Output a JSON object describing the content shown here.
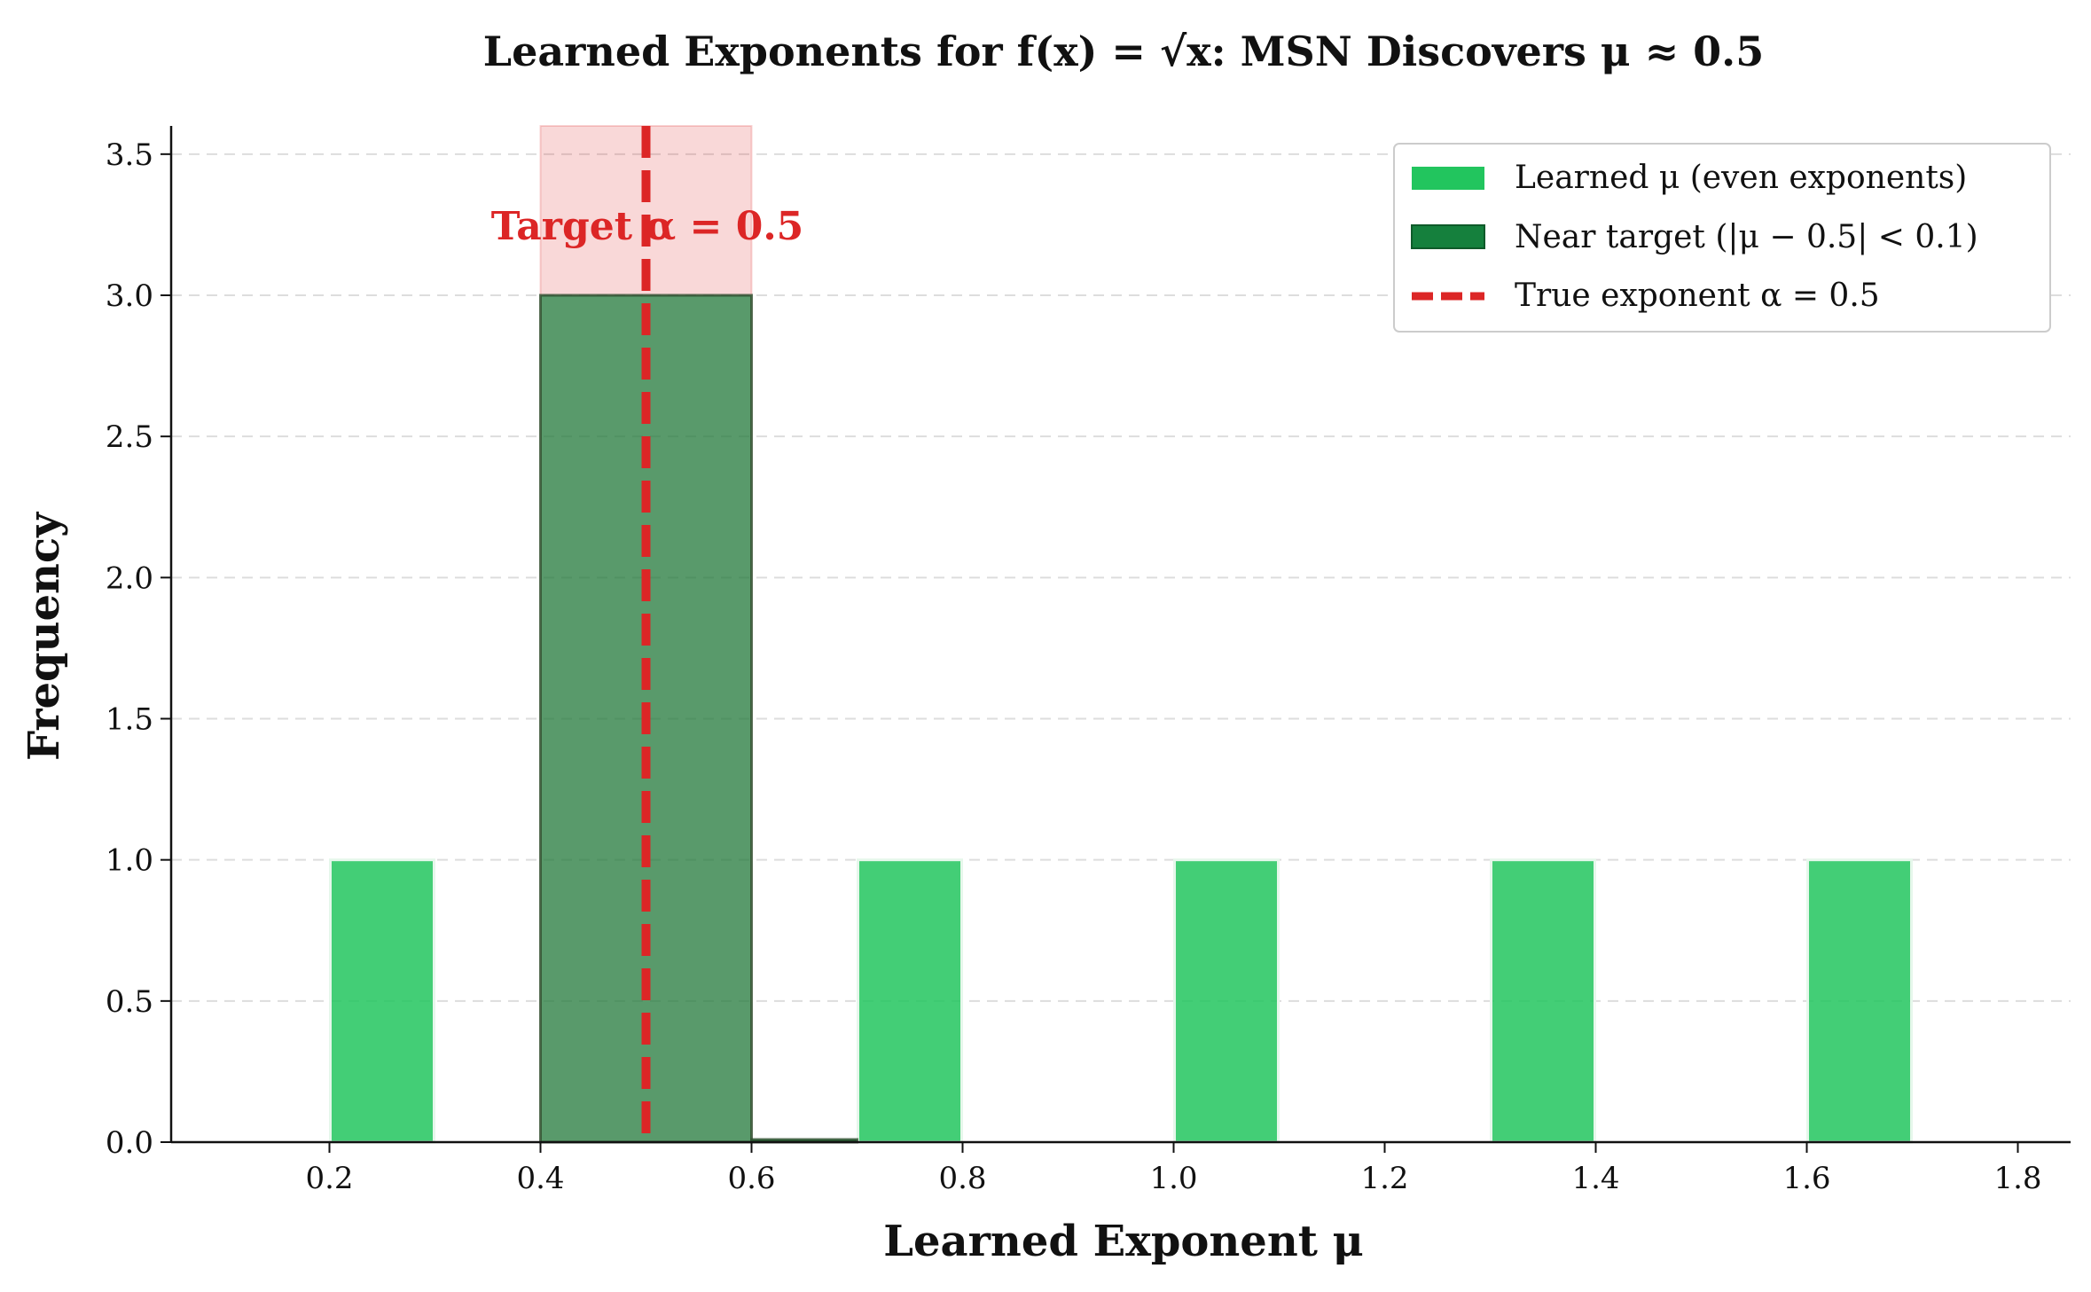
{
  "chart_data": {
    "type": "bar",
    "title": "Learned Exponents for f(x) = √x: MSN Discovers μ ≈ 0.5",
    "xlabel": "Learned Exponent μ",
    "ylabel": "Frequency",
    "xlim": [
      0.05,
      1.85
    ],
    "ylim": [
      0,
      3.6
    ],
    "xticks": [
      "0.2",
      "0.4",
      "0.6",
      "0.8",
      "1.0",
      "1.2",
      "1.4",
      "1.6",
      "1.8"
    ],
    "yticks": [
      "0.0",
      "0.5",
      "1.0",
      "1.5",
      "2.0",
      "2.5",
      "3.0",
      "3.5"
    ],
    "grid": "horizontal-dashed",
    "legend_placement": "top-right",
    "series": [
      {
        "name": "Learned μ (even exponents)",
        "color": "#22c55e",
        "bins": [
          {
            "x0": 0.2,
            "x1": 0.3,
            "value": 1
          },
          {
            "x0": 0.7,
            "x1": 0.8,
            "value": 1
          },
          {
            "x0": 1.0,
            "x1": 1.1,
            "value": 1
          },
          {
            "x0": 1.3,
            "x1": 1.4,
            "value": 1
          },
          {
            "x0": 1.6,
            "x1": 1.7,
            "value": 1
          }
        ]
      },
      {
        "name": "Near target (|μ − 0.5| < 0.1)",
        "color": "#15803d",
        "bins": [
          {
            "x0": 0.4,
            "x1": 0.6,
            "value": 3
          },
          {
            "x0": 0.6,
            "x1": 0.7,
            "value": 0
          }
        ]
      }
    ],
    "reference_line": {
      "name": "True exponent α = 0.5",
      "x": 0.5,
      "color": "#dc2626",
      "band": [
        0.4,
        0.6
      ],
      "annotation": "Target α = 0.5"
    }
  }
}
